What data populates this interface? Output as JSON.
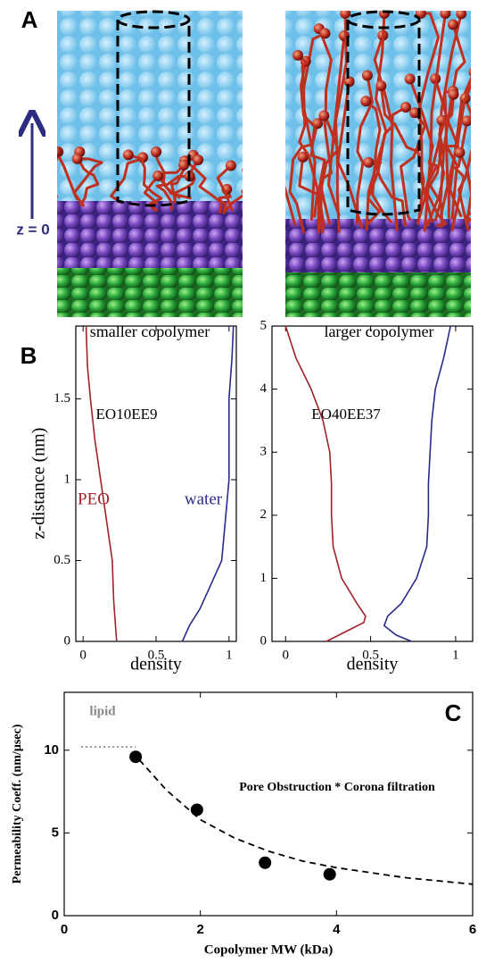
{
  "panel_a": {
    "panel_label": "A",
    "z_label": "z = 0",
    "left_caption": "smaller copolymer",
    "right_caption": "larger copolymer"
  },
  "chart_data": [
    {
      "type": "line",
      "panel_label": "B",
      "xlabel": "density",
      "ylabel": "z-distance  (nm)",
      "annotations": [
        "EO10EE9"
      ],
      "xlim": [
        -0.05,
        1.05
      ],
      "ylim": [
        0,
        1.95
      ],
      "xticks": [
        0,
        0.5,
        1
      ],
      "yticks": [
        0,
        0.5,
        1,
        1.5
      ],
      "series": [
        {
          "name": "PEO",
          "color": "#a0222a",
          "x": [
            0.23,
            0.21,
            0.2,
            0.16,
            0.12,
            0.08,
            0.05,
            0.03,
            0.02
          ],
          "values": [
            0,
            0.25,
            0.5,
            0.75,
            1,
            1.25,
            1.5,
            1.7,
            1.95
          ]
        },
        {
          "name": "water",
          "color": "#2a2a8a",
          "x": [
            0.68,
            0.73,
            0.8,
            0.85,
            0.95,
            0.97,
            1.0,
            1.0,
            1.0,
            1.02,
            1.03
          ],
          "values": [
            0,
            0.1,
            0.2,
            0.3,
            0.5,
            0.7,
            1,
            1.25,
            1.5,
            1.75,
            1.95
          ]
        }
      ]
    },
    {
      "type": "line",
      "xlabel": "density",
      "annotations": [
        "EO40EE37"
      ],
      "xlim": [
        -0.08,
        1.1
      ],
      "ylim": [
        0,
        5
      ],
      "xticks": [
        0,
        0.5,
        1
      ],
      "yticks": [
        0,
        1,
        2,
        3,
        4,
        5
      ],
      "series": [
        {
          "color": "#a0222a",
          "x": [
            0.24,
            0.35,
            0.46,
            0.47,
            0.42,
            0.33,
            0.28,
            0.27,
            0.27,
            0.26,
            0.22,
            0.15,
            0.06,
            0.0
          ],
          "values": [
            0,
            0.15,
            0.3,
            0.4,
            0.6,
            1,
            1.5,
            2,
            2.5,
            3,
            3.5,
            4,
            4.5,
            5
          ]
        },
        {
          "color": "#2a2a8a",
          "x": [
            0.74,
            0.65,
            0.58,
            0.6,
            0.68,
            0.77,
            0.83,
            0.84,
            0.84,
            0.85,
            0.86,
            0.88,
            0.93,
            0.97
          ],
          "values": [
            0,
            0.1,
            0.25,
            0.4,
            0.6,
            1,
            1.5,
            2,
            2.5,
            3,
            3.5,
            4,
            4.5,
            5
          ]
        }
      ]
    },
    {
      "type": "scatter",
      "panel_label": "C",
      "xlabel": "Copolymer MW (kDa)",
      "ylabel": "Permeability Coeff. (nm/µsec)",
      "annotations": [
        "Pore Obstruction * Corona filtration"
      ],
      "xlim": [
        0,
        6
      ],
      "ylim": [
        0,
        13.5
      ],
      "xticks": [
        0,
        2,
        4,
        6
      ],
      "yticks": [
        0,
        5,
        10
      ],
      "series": [
        {
          "color": "#000000",
          "style": "marker",
          "x": [
            1.05,
            1.95,
            2.95,
            3.9
          ],
          "values": [
            9.6,
            6.4,
            3.2,
            2.5
          ]
        },
        {
          "color": "#000000",
          "style": "dashed",
          "x": [
            1.0,
            1.5,
            2,
            2.5,
            3,
            3.5,
            4,
            5,
            6
          ],
          "values": [
            9.9,
            7.6,
            5.8,
            4.7,
            3.9,
            3.3,
            2.9,
            2.3,
            1.9
          ]
        },
        {
          "name": "lipid",
          "color": "#888888",
          "style": "dotted",
          "x": [
            0.25,
            1.05
          ],
          "values": [
            10.2,
            10.2
          ]
        }
      ]
    }
  ]
}
